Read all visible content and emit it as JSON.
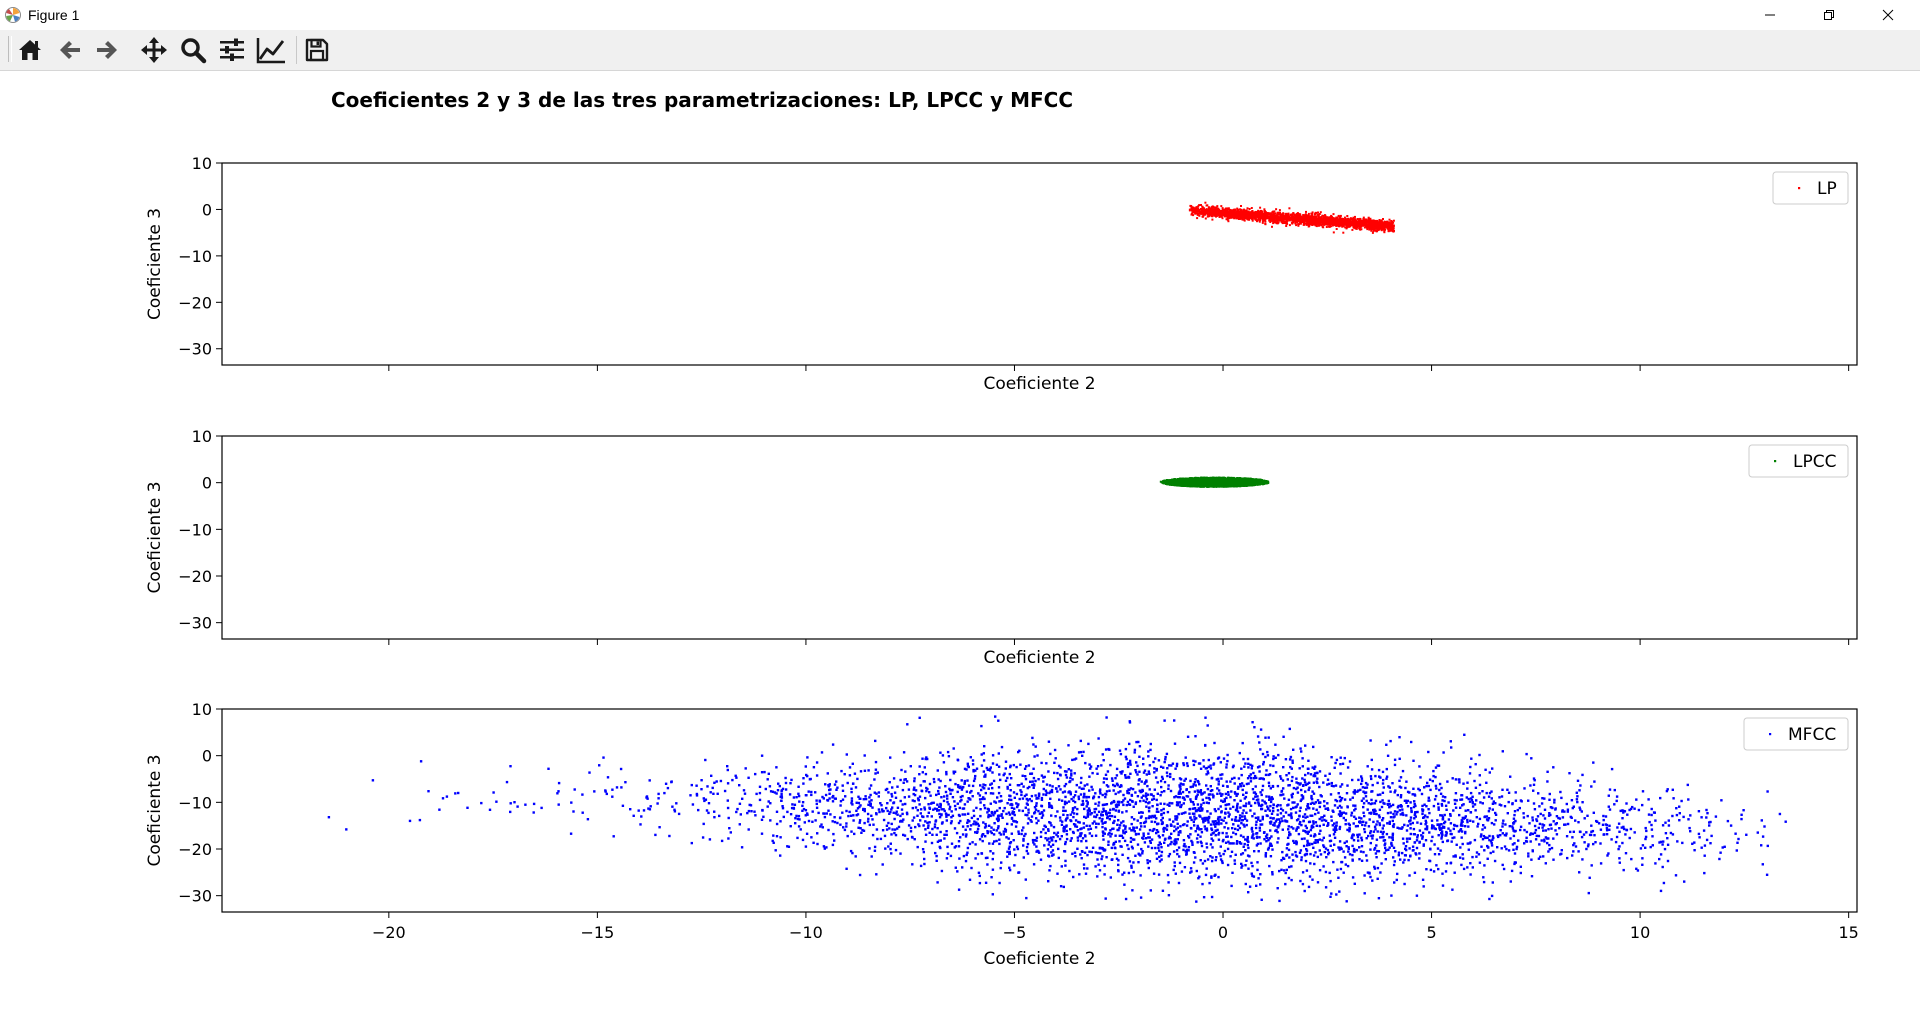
{
  "window": {
    "title": "Figure 1",
    "icons": [
      "matplotlib-app-icon",
      "minimize-icon",
      "restore-icon",
      "close-icon"
    ]
  },
  "toolbar": {
    "buttons": [
      {
        "name": "home",
        "icon": "home-icon"
      },
      {
        "name": "back",
        "icon": "arrow-left-icon"
      },
      {
        "name": "forward",
        "icon": "arrow-right-icon"
      },
      {
        "name": "pan",
        "icon": "move-icon"
      },
      {
        "name": "zoom",
        "icon": "magnifier-icon"
      },
      {
        "name": "configure-subplots",
        "icon": "sliders-icon"
      },
      {
        "name": "edit-axis",
        "icon": "line-chart-icon"
      },
      {
        "name": "save",
        "icon": "floppy-disk-icon"
      }
    ]
  },
  "figure": {
    "suptitle": "Coeficientes 2 y 3 de las tres parametrizaciones: LP, LPCC y MFCC"
  },
  "chart_data": [
    {
      "type": "scatter",
      "title": "",
      "xlabel": "Coeficiente 2",
      "ylabel": "Coeficiente 3",
      "xlim": [
        -24,
        15.2
      ],
      "ylim": [
        -33.5,
        10
      ],
      "xticks": [
        -20,
        -15,
        -10,
        -5,
        0,
        5,
        10,
        15
      ],
      "yticks": [
        10,
        0,
        -10,
        -20,
        -30
      ],
      "show_xticklabels": false,
      "legend": {
        "position": "top-right"
      },
      "grid": false,
      "series": [
        {
          "name": "LP",
          "color": "#ff0000",
          "marker_size": 2,
          "cloud": {
            "x_range": [
              -0.8,
              4.1
            ],
            "y_at_x_start": -0.2,
            "y_at_x_end": -3.6,
            "y_spread": 1.6,
            "approx_points": 2600
          }
        }
      ]
    },
    {
      "type": "scatter",
      "title": "",
      "xlabel": "Coeficiente 2",
      "ylabel": "Coeficiente 3",
      "xlim": [
        -24,
        15.2
      ],
      "ylim": [
        -33.5,
        10
      ],
      "xticks": [
        -20,
        -15,
        -10,
        -5,
        0,
        5,
        10,
        15
      ],
      "yticks": [
        10,
        0,
        -10,
        -20,
        -30
      ],
      "show_xticklabels": false,
      "legend": {
        "position": "top-right"
      },
      "grid": false,
      "series": [
        {
          "name": "LPCC",
          "color": "#008000",
          "marker_size": 2,
          "cloud": {
            "center": [
              -0.2,
              0.1
            ],
            "x_half_width": 1.3,
            "y_half_height": 1.0,
            "approx_points": 2600
          }
        }
      ]
    },
    {
      "type": "scatter",
      "title": "",
      "xlabel": "Coeficiente 2",
      "ylabel": "Coeficiente 3",
      "xlim": [
        -24,
        15.2
      ],
      "ylim": [
        -33.5,
        10
      ],
      "xticks": [
        -20,
        -15,
        -10,
        -5,
        0,
        5,
        10,
        15
      ],
      "yticks": [
        10,
        0,
        -10,
        -20,
        -30
      ],
      "show_xticklabels": true,
      "legend": {
        "position": "top-right"
      },
      "grid": false,
      "series": [
        {
          "name": "MFCC",
          "color": "#0000ff",
          "marker_size": 2.4,
          "cloud": {
            "x_range": [
              -22.2,
              13.5
            ],
            "x_mean": -0.5,
            "x_std": 5.8,
            "y_mean_at_x_start": -8,
            "y_mean_at_x_end": -16,
            "y_std": 7.5,
            "y_clip": [
              -31.5,
              8.5
            ],
            "approx_points": 4200
          }
        }
      ]
    }
  ]
}
